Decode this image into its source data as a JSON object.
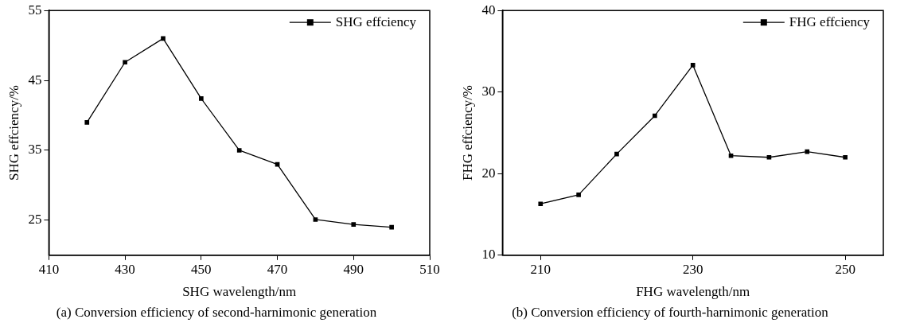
{
  "chart_data": [
    {
      "type": "line",
      "title": "(a) Conversion efficiency of second-harnimonic generation",
      "xlabel": "SHG wavelength/nm",
      "ylabel": "SHG effciency/%",
      "x": [
        420,
        430,
        440,
        450,
        460,
        470,
        480,
        490,
        500
      ],
      "series": [
        {
          "name": "SHG effciency",
          "color": "#000000",
          "values": [
            39,
            47.6,
            51,
            42.4,
            35,
            33,
            25.1,
            24.4,
            24
          ]
        }
      ],
      "xlim": [
        410,
        510
      ],
      "xticks": [
        410,
        430,
        450,
        470,
        490,
        510
      ],
      "ylim": [
        20,
        55
      ],
      "yticks": [
        25,
        35,
        45,
        55
      ],
      "marker": "square",
      "line_style": "solid",
      "legend": "top right",
      "grid": false
    },
    {
      "type": "line",
      "title": "(b) Conversion efficiency of fourth-harnimonic generation",
      "xlabel": "FHG wavelength/nm",
      "ylabel": "FHG effciency/%",
      "x": [
        210,
        215,
        220,
        225,
        230,
        235,
        240,
        245,
        250
      ],
      "series": [
        {
          "name": "FHG effciency",
          "color": "#000000",
          "values": [
            16.3,
            17.4,
            22.4,
            27.1,
            33.3,
            22.2,
            22,
            22.7,
            22
          ]
        }
      ],
      "xlim": [
        205,
        255
      ],
      "xticks": [
        210,
        230,
        250
      ],
      "ylim": [
        10,
        40
      ],
      "yticks": [
        10,
        20,
        30,
        40
      ],
      "marker": "square",
      "line_style": "solid",
      "legend": "top right",
      "grid": false
    }
  ]
}
